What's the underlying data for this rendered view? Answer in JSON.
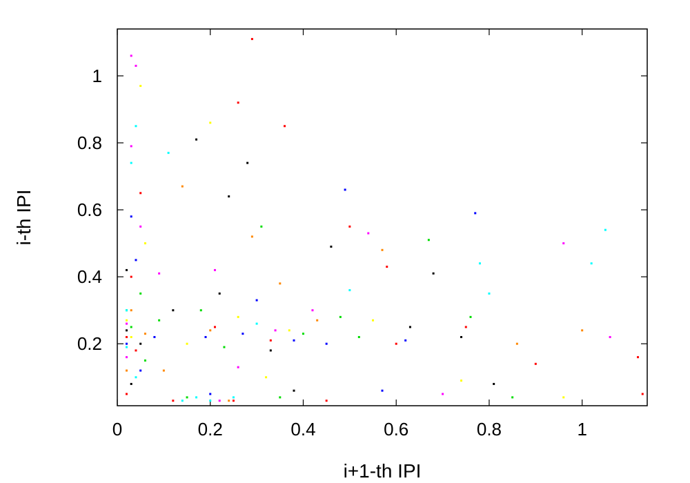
{
  "chart_data": {
    "type": "scatter",
    "title": "",
    "xlabel": "i+1-th IPI",
    "ylabel": "i-th IPI",
    "xlim": [
      0,
      1.14
    ],
    "ylim": [
      0.015,
      1.14
    ],
    "x_ticks": [
      0,
      0.2,
      0.4,
      0.6,
      0.8,
      1
    ],
    "x_tick_labels": [
      "0",
      "0.2",
      "0.4",
      "0.6",
      "0.8",
      "1"
    ],
    "y_ticks": [
      0.2,
      0.4,
      0.6,
      0.8,
      1
    ],
    "y_tick_labels": [
      "0.2",
      "0.4",
      "0.6",
      "0.8",
      "1"
    ],
    "grid": false,
    "legend": "none",
    "colors": [
      "#ff0000",
      "#00dd00",
      "#0000ff",
      "#ff00ff",
      "#00ffff",
      "#000000",
      "#ff8800",
      "#ffff00"
    ],
    "series": [
      {
        "color": "#ff0000",
        "points": [
          [
            0.02,
            0.22
          ],
          [
            0.04,
            0.18
          ],
          [
            0.21,
            0.25
          ],
          [
            0.33,
            0.21
          ],
          [
            0.29,
            1.11
          ],
          [
            0.26,
            0.92
          ],
          [
            0.36,
            0.85
          ],
          [
            0.5,
            0.55
          ],
          [
            0.58,
            0.43
          ],
          [
            0.75,
            0.25
          ],
          [
            0.9,
            0.14
          ],
          [
            1.12,
            0.16
          ],
          [
            1.13,
            0.05
          ],
          [
            0.05,
            0.65
          ],
          [
            0.03,
            0.4
          ],
          [
            0.12,
            0.03
          ],
          [
            0.25,
            0.03
          ],
          [
            0.45,
            0.03
          ],
          [
            0.6,
            0.2
          ],
          [
            0.02,
            0.05
          ]
        ]
      },
      {
        "color": "#00dd00",
        "points": [
          [
            0.03,
            0.25
          ],
          [
            0.06,
            0.15
          ],
          [
            0.18,
            0.3
          ],
          [
            0.23,
            0.19
          ],
          [
            0.4,
            0.23
          ],
          [
            0.31,
            0.55
          ],
          [
            0.48,
            0.28
          ],
          [
            0.67,
            0.51
          ],
          [
            0.85,
            0.04
          ],
          [
            0.76,
            0.28
          ],
          [
            0.05,
            0.35
          ],
          [
            0.15,
            0.04
          ],
          [
            0.35,
            0.04
          ],
          [
            0.52,
            0.22
          ],
          [
            0.02,
            0.3
          ],
          [
            0.09,
            0.27
          ]
        ]
      },
      {
        "color": "#0000ff",
        "points": [
          [
            0.02,
            0.2
          ],
          [
            0.05,
            0.12
          ],
          [
            0.19,
            0.22
          ],
          [
            0.27,
            0.23
          ],
          [
            0.38,
            0.21
          ],
          [
            0.49,
            0.66
          ],
          [
            0.57,
            0.06
          ],
          [
            0.77,
            0.59
          ],
          [
            0.45,
            0.2
          ],
          [
            0.04,
            0.45
          ],
          [
            0.2,
            0.05
          ],
          [
            0.3,
            0.33
          ],
          [
            0.62,
            0.21
          ],
          [
            0.08,
            0.22
          ],
          [
            0.03,
            0.58
          ]
        ]
      },
      {
        "color": "#ff00ff",
        "points": [
          [
            0.02,
            0.26
          ],
          [
            0.03,
            1.06
          ],
          [
            0.04,
            1.03
          ],
          [
            0.03,
            0.79
          ],
          [
            0.96,
            0.5
          ],
          [
            1.06,
            0.22
          ],
          [
            0.21,
            0.42
          ],
          [
            0.26,
            0.13
          ],
          [
            0.34,
            0.24
          ],
          [
            0.42,
            0.3
          ],
          [
            0.09,
            0.41
          ],
          [
            0.05,
            0.55
          ],
          [
            0.22,
            0.03
          ],
          [
            0.54,
            0.53
          ],
          [
            0.7,
            0.05
          ],
          [
            0.02,
            0.16
          ]
        ]
      },
      {
        "color": "#00ffff",
        "points": [
          [
            0.02,
            0.19
          ],
          [
            0.04,
            0.85
          ],
          [
            0.03,
            0.74
          ],
          [
            0.11,
            0.77
          ],
          [
            1.05,
            0.54
          ],
          [
            1.02,
            0.44
          ],
          [
            0.78,
            0.44
          ],
          [
            0.14,
            0.03
          ],
          [
            0.17,
            0.04
          ],
          [
            0.2,
            0.03
          ],
          [
            0.25,
            0.04
          ],
          [
            0.04,
            0.1
          ],
          [
            0.3,
            0.26
          ],
          [
            0.5,
            0.36
          ],
          [
            0.8,
            0.35
          ],
          [
            0.02,
            0.3
          ]
        ]
      },
      {
        "color": "#000000",
        "points": [
          [
            0.02,
            0.24
          ],
          [
            0.03,
            0.08
          ],
          [
            0.17,
            0.81
          ],
          [
            0.24,
            0.64
          ],
          [
            0.28,
            0.74
          ],
          [
            0.22,
            0.35
          ],
          [
            0.33,
            0.18
          ],
          [
            0.46,
            0.49
          ],
          [
            0.68,
            0.41
          ],
          [
            0.74,
            0.22
          ],
          [
            0.81,
            0.08
          ],
          [
            0.12,
            0.3
          ],
          [
            0.05,
            0.2
          ],
          [
            0.38,
            0.06
          ],
          [
            0.02,
            0.42
          ],
          [
            0.63,
            0.25
          ]
        ]
      },
      {
        "color": "#ff8800",
        "points": [
          [
            0.03,
            0.3
          ],
          [
            0.06,
            0.23
          ],
          [
            0.14,
            0.67
          ],
          [
            0.2,
            0.24
          ],
          [
            0.29,
            0.52
          ],
          [
            0.35,
            0.38
          ],
          [
            0.57,
            0.48
          ],
          [
            0.86,
            0.2
          ],
          [
            1.0,
            0.24
          ],
          [
            0.1,
            0.12
          ],
          [
            0.43,
            0.27
          ],
          [
            0.24,
            0.03
          ],
          [
            0.02,
            0.12
          ]
        ]
      },
      {
        "color": "#ffff00",
        "points": [
          [
            0.03,
            0.22
          ],
          [
            0.05,
            0.97
          ],
          [
            0.2,
            0.86
          ],
          [
            0.26,
            0.28
          ],
          [
            0.37,
            0.24
          ],
          [
            0.55,
            0.27
          ],
          [
            0.74,
            0.09
          ],
          [
            0.96,
            0.04
          ],
          [
            0.15,
            0.2
          ],
          [
            0.06,
            0.5
          ],
          [
            0.32,
            0.1
          ],
          [
            0.02,
            0.27
          ]
        ]
      }
    ]
  }
}
